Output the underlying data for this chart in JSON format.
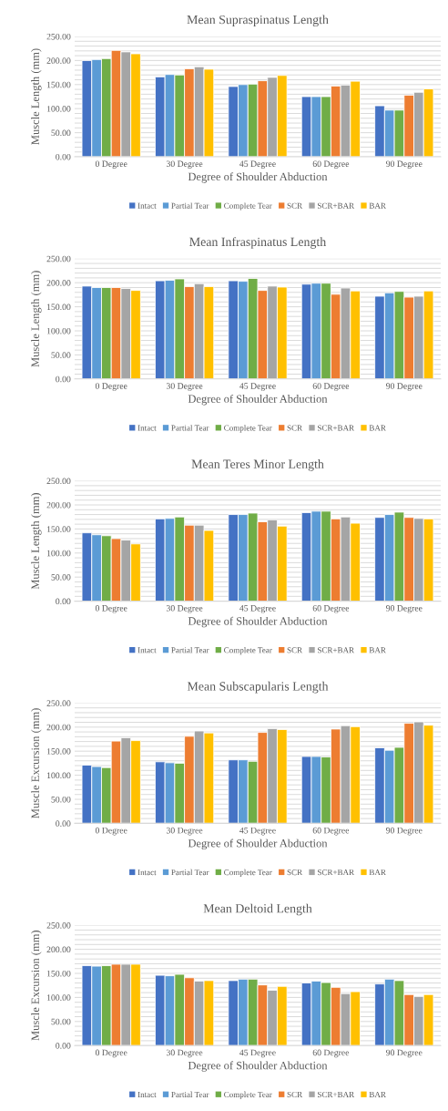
{
  "chart_data": [
    {
      "type": "bar",
      "title": "Mean Supraspinatus Length",
      "xlabel": "Degree of Shoulder Abduction",
      "ylabel": "Muscle Length (mm)",
      "categories": [
        "0 Degree",
        "30 Degree",
        "45 Degree",
        "60 Degree",
        "90 Degree"
      ],
      "ylim": [
        0,
        250
      ],
      "yticks": [
        {
          "value": 0,
          "label": "0.00"
        },
        {
          "value": 10,
          "label": null
        },
        {
          "value": 20,
          "label": null
        },
        {
          "value": 30,
          "label": null
        },
        {
          "value": 40,
          "label": null
        },
        {
          "value": 50,
          "label": "50.00"
        },
        {
          "value": 60,
          "label": null
        },
        {
          "value": 70,
          "label": null
        },
        {
          "value": 80,
          "label": null
        },
        {
          "value": 90,
          "label": null
        },
        {
          "value": 100,
          "label": "100.00"
        },
        {
          "value": 110,
          "label": null
        },
        {
          "value": 120,
          "label": null
        },
        {
          "value": 130,
          "label": null
        },
        {
          "value": 140,
          "label": null
        },
        {
          "value": 150,
          "label": "150.00"
        },
        {
          "value": 160,
          "label": null
        },
        {
          "value": 170,
          "label": null
        },
        {
          "value": 180,
          "label": null
        },
        {
          "value": 190,
          "label": null
        },
        {
          "value": 200,
          "label": "200.00"
        },
        {
          "value": 210,
          "label": null
        },
        {
          "value": 220,
          "label": null
        },
        {
          "value": 230,
          "label": null
        },
        {
          "value": 240,
          "label": null
        },
        {
          "value": 250,
          "label": "250.00"
        }
      ],
      "grid": "y",
      "legend": "bottom",
      "series": [
        {
          "name": "Intact",
          "color": "#4472c4",
          "values": [
            200,
            166,
            146,
            125,
            106
          ]
        },
        {
          "name": "Partial Tear",
          "color": "#5b9bd5",
          "values": [
            202,
            171,
            150,
            125,
            97
          ]
        },
        {
          "name": "Complete Tear",
          "color": "#70ad47",
          "values": [
            204,
            170,
            151,
            125,
            97
          ]
        },
        {
          "name": "SCR",
          "color": "#ed7d31",
          "values": [
            221,
            183,
            158,
            147,
            128
          ]
        },
        {
          "name": "SCR+BAR",
          "color": "#a5a5a5",
          "values": [
            218,
            187,
            165,
            149,
            134
          ]
        },
        {
          "name": "BAR",
          "color": "#ffc000",
          "values": [
            214,
            182,
            169,
            157,
            141
          ]
        }
      ]
    },
    {
      "type": "bar",
      "title": "Mean Infraspinatus Length",
      "xlabel": "Degree of Shoulder Abduction",
      "ylabel": "Muscle Length (mm)",
      "categories": [
        "0 Degree",
        "30 Degree",
        "45 Degree",
        "60 Degree",
        "90 Degree"
      ],
      "ylim": [
        0,
        250
      ],
      "yticks": [
        {
          "value": 0,
          "label": "0.00"
        },
        {
          "value": 10,
          "label": null
        },
        {
          "value": 20,
          "label": null
        },
        {
          "value": 30,
          "label": null
        },
        {
          "value": 40,
          "label": null
        },
        {
          "value": 50,
          "label": "50.00"
        },
        {
          "value": 60,
          "label": null
        },
        {
          "value": 70,
          "label": null
        },
        {
          "value": 80,
          "label": null
        },
        {
          "value": 90,
          "label": null
        },
        {
          "value": 100,
          "label": "100.00"
        },
        {
          "value": 110,
          "label": null
        },
        {
          "value": 120,
          "label": null
        },
        {
          "value": 130,
          "label": null
        },
        {
          "value": 140,
          "label": null
        },
        {
          "value": 150,
          "label": "150.00"
        },
        {
          "value": 160,
          "label": null
        },
        {
          "value": 170,
          "label": null
        },
        {
          "value": 180,
          "label": null
        },
        {
          "value": 190,
          "label": null
        },
        {
          "value": 200,
          "label": "200.00"
        },
        {
          "value": 210,
          "label": null
        },
        {
          "value": 220,
          "label": null
        },
        {
          "value": 230,
          "label": null
        },
        {
          "value": 240,
          "label": null
        },
        {
          "value": 250,
          "label": "250.00"
        }
      ],
      "grid": "y",
      "legend": "bottom",
      "series": [
        {
          "name": "Intact",
          "color": "#4472c4",
          "values": [
            193,
            204,
            204,
            197,
            172
          ]
        },
        {
          "name": "Partial Tear",
          "color": "#5b9bd5",
          "values": [
            190,
            205,
            203,
            199,
            179
          ]
        },
        {
          "name": "Complete Tear",
          "color": "#70ad47",
          "values": [
            190,
            208,
            209,
            199,
            182
          ]
        },
        {
          "name": "SCR",
          "color": "#ed7d31",
          "values": [
            190,
            192,
            184,
            176,
            170
          ]
        },
        {
          "name": "SCR+BAR",
          "color": "#a5a5a5",
          "values": [
            188,
            198,
            193,
            189,
            172
          ]
        },
        {
          "name": "BAR",
          "color": "#ffc000",
          "values": [
            184,
            192,
            191,
            183,
            183
          ]
        }
      ]
    },
    {
      "type": "bar",
      "title": "Mean Teres Minor Length",
      "xlabel": "Degree of Shoulder Abduction",
      "ylabel": "Muscle Length (mm)",
      "categories": [
        "0 Degree",
        "30 Degree",
        "45 Degree",
        "60 Degree",
        "90 Degree"
      ],
      "ylim": [
        0,
        250
      ],
      "yticks": [
        {
          "value": 0,
          "label": "0.00"
        },
        {
          "value": 10,
          "label": null
        },
        {
          "value": 20,
          "label": null
        },
        {
          "value": 30,
          "label": null
        },
        {
          "value": 40,
          "label": null
        },
        {
          "value": 50,
          "label": "50.00"
        },
        {
          "value": 60,
          "label": null
        },
        {
          "value": 70,
          "label": null
        },
        {
          "value": 80,
          "label": null
        },
        {
          "value": 90,
          "label": null
        },
        {
          "value": 100,
          "label": "100.00"
        },
        {
          "value": 110,
          "label": null
        },
        {
          "value": 120,
          "label": null
        },
        {
          "value": 130,
          "label": null
        },
        {
          "value": 140,
          "label": null
        },
        {
          "value": 150,
          "label": "150.00"
        },
        {
          "value": 160,
          "label": null
        },
        {
          "value": 170,
          "label": null
        },
        {
          "value": 180,
          "label": null
        },
        {
          "value": 190,
          "label": null
        },
        {
          "value": 200,
          "label": "200.00"
        },
        {
          "value": 210,
          "label": null
        },
        {
          "value": 220,
          "label": null
        },
        {
          "value": 230,
          "label": null
        },
        {
          "value": 240,
          "label": null
        },
        {
          "value": 250,
          "label": "250.00"
        }
      ],
      "grid": "y",
      "legend": "bottom",
      "series": [
        {
          "name": "Intact",
          "color": "#4472c4",
          "values": [
            142,
            171,
            180,
            184,
            174
          ]
        },
        {
          "name": "Partial Tear",
          "color": "#5b9bd5",
          "values": [
            138,
            172,
            180,
            187,
            180
          ]
        },
        {
          "name": "Complete Tear",
          "color": "#70ad47",
          "values": [
            136,
            175,
            183,
            187,
            185
          ]
        },
        {
          "name": "SCR",
          "color": "#ed7d31",
          "values": [
            130,
            158,
            165,
            171,
            174
          ]
        },
        {
          "name": "SCR+BAR",
          "color": "#a5a5a5",
          "values": [
            127,
            158,
            169,
            175,
            172
          ]
        },
        {
          "name": "BAR",
          "color": "#ffc000",
          "values": [
            119,
            147,
            156,
            162,
            171
          ]
        }
      ]
    },
    {
      "type": "bar",
      "title": "Mean Subscapularis Length",
      "xlabel": "Degree of Shoulder Abduction",
      "ylabel": "Muscle Excursion (mm)",
      "categories": [
        "0 Degree",
        "30 Degree",
        "45 Degree",
        "60 Degree",
        "90 Degree"
      ],
      "ylim": [
        0,
        250
      ],
      "yticks": [
        {
          "value": 0,
          "label": "0.00"
        },
        {
          "value": 10,
          "label": null
        },
        {
          "value": 20,
          "label": null
        },
        {
          "value": 30,
          "label": null
        },
        {
          "value": 40,
          "label": null
        },
        {
          "value": 50,
          "label": "50.00"
        },
        {
          "value": 60,
          "label": null
        },
        {
          "value": 70,
          "label": null
        },
        {
          "value": 80,
          "label": null
        },
        {
          "value": 90,
          "label": null
        },
        {
          "value": 100,
          "label": "100.00"
        },
        {
          "value": 110,
          "label": null
        },
        {
          "value": 120,
          "label": null
        },
        {
          "value": 130,
          "label": null
        },
        {
          "value": 140,
          "label": null
        },
        {
          "value": 150,
          "label": "150.00"
        },
        {
          "value": 160,
          "label": null
        },
        {
          "value": 170,
          "label": null
        },
        {
          "value": 180,
          "label": null
        },
        {
          "value": 190,
          "label": null
        },
        {
          "value": 200,
          "label": "200.00"
        },
        {
          "value": 210,
          "label": null
        },
        {
          "value": 220,
          "label": null
        },
        {
          "value": 230,
          "label": null
        },
        {
          "value": 240,
          "label": null
        },
        {
          "value": 250,
          "label": "250.00"
        }
      ],
      "grid": "y",
      "legend": "bottom",
      "series": [
        {
          "name": "Intact",
          "color": "#4472c4",
          "values": [
            121,
            128,
            132,
            139,
            157
          ]
        },
        {
          "name": "Partial Tear",
          "color": "#5b9bd5",
          "values": [
            118,
            126,
            132,
            139,
            152
          ]
        },
        {
          "name": "Complete Tear",
          "color": "#70ad47",
          "values": [
            116,
            125,
            129,
            138,
            158
          ]
        },
        {
          "name": "SCR",
          "color": "#ed7d31",
          "values": [
            171,
            181,
            189,
            196,
            208
          ]
        },
        {
          "name": "SCR+BAR",
          "color": "#a5a5a5",
          "values": [
            178,
            192,
            197,
            203,
            211
          ]
        },
        {
          "name": "BAR",
          "color": "#ffc000",
          "values": [
            172,
            188,
            195,
            201,
            204
          ]
        }
      ]
    },
    {
      "type": "bar",
      "title": "Mean Deltoid Length",
      "xlabel": "Degree of Shoulder Abduction",
      "ylabel": "Muscle Excursion (mm)",
      "categories": [
        "0 Degree",
        "30 Degree",
        "45 Degree",
        "60 Degree",
        "90 Degree"
      ],
      "ylim": [
        0,
        250
      ],
      "yticks": [
        {
          "value": 0,
          "label": "0.00"
        },
        {
          "value": 10,
          "label": null
        },
        {
          "value": 20,
          "label": null
        },
        {
          "value": 30,
          "label": null
        },
        {
          "value": 40,
          "label": null
        },
        {
          "value": 50,
          "label": "50.00"
        },
        {
          "value": 60,
          "label": null
        },
        {
          "value": 70,
          "label": null
        },
        {
          "value": 80,
          "label": null
        },
        {
          "value": 90,
          "label": null
        },
        {
          "value": 100,
          "label": "100.00"
        },
        {
          "value": 110,
          "label": null
        },
        {
          "value": 120,
          "label": null
        },
        {
          "value": 130,
          "label": null
        },
        {
          "value": 140,
          "label": null
        },
        {
          "value": 150,
          "label": "150.00"
        },
        {
          "value": 160,
          "label": null
        },
        {
          "value": 170,
          "label": null
        },
        {
          "value": 180,
          "label": null
        },
        {
          "value": 190,
          "label": null
        },
        {
          "value": 200,
          "label": "200.00"
        },
        {
          "value": 210,
          "label": null
        },
        {
          "value": 220,
          "label": null
        },
        {
          "value": 230,
          "label": null
        },
        {
          "value": 240,
          "label": null
        },
        {
          "value": 250,
          "label": "250.00"
        }
      ],
      "grid": "y",
      "legend": "bottom",
      "series": [
        {
          "name": "Intact",
          "color": "#4472c4",
          "values": [
            166,
            146,
            135,
            130,
            128
          ]
        },
        {
          "name": "Partial Tear",
          "color": "#5b9bd5",
          "values": [
            165,
            145,
            138,
            134,
            138
          ]
        },
        {
          "name": "Complete Tear",
          "color": "#70ad47",
          "values": [
            166,
            148,
            138,
            131,
            135
          ]
        },
        {
          "name": "SCR",
          "color": "#ed7d31",
          "values": [
            169,
            141,
            126,
            121,
            106
          ]
        },
        {
          "name": "SCR+BAR",
          "color": "#a5a5a5",
          "values": [
            169,
            134,
            115,
            108,
            102
          ]
        },
        {
          "name": "BAR",
          "color": "#ffc000",
          "values": [
            169,
            135,
            123,
            112,
            106
          ]
        }
      ]
    }
  ]
}
